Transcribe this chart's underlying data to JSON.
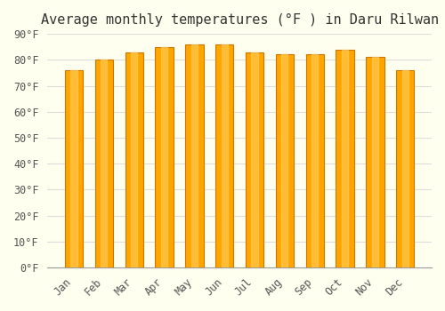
{
  "title": "Average monthly temperatures (°F ) in Daru Rilwan",
  "months": [
    "Jan",
    "Feb",
    "Mar",
    "Apr",
    "May",
    "Jun",
    "Jul",
    "Aug",
    "Sep",
    "Oct",
    "Nov",
    "Dec"
  ],
  "values": [
    76,
    80,
    83,
    85,
    86,
    86,
    83,
    82,
    82,
    84,
    81,
    76
  ],
  "bar_color": "#FFA500",
  "bar_edge_color": "#CC7700",
  "background_color": "#FFFFF0",
  "grid_color": "#DDDDDD",
  "ylim": [
    0,
    90
  ],
  "yticks": [
    0,
    10,
    20,
    30,
    40,
    50,
    60,
    70,
    80,
    90
  ],
  "ytick_labels": [
    "0°F",
    "10°F",
    "20°F",
    "30°F",
    "40°F",
    "50°F",
    "60°F",
    "70°F",
    "80°F",
    "90°F"
  ],
  "title_fontsize": 11,
  "tick_fontsize": 8.5,
  "bar_width": 0.6
}
